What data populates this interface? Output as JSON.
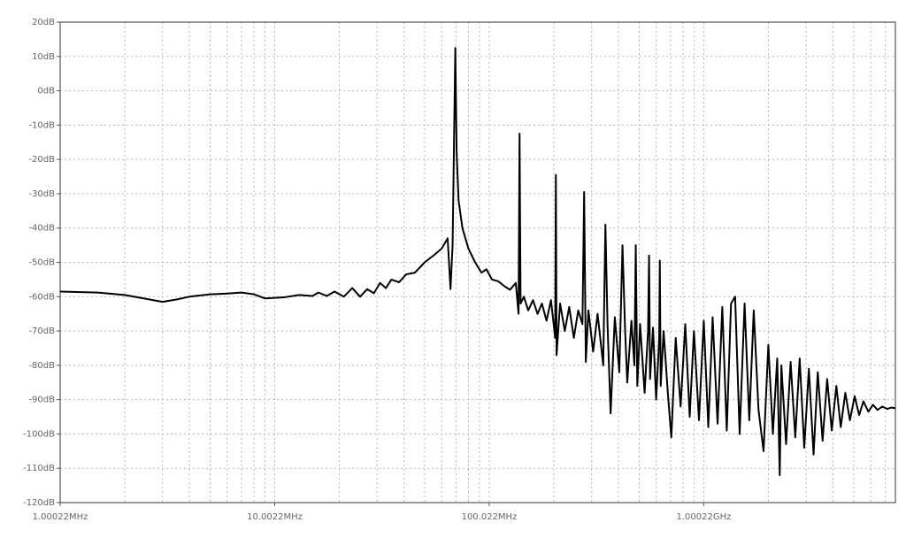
{
  "chart_data": {
    "type": "line",
    "xscale": "log",
    "grid": true,
    "color": "#000000",
    "xlim": [
      1000220,
      7820000000
    ],
    "ylim": [
      -120,
      20
    ],
    "xticks": [
      {
        "value": 1000220,
        "label": "1.00022MHz"
      },
      {
        "value": 10002200,
        "label": "10.0022MHz"
      },
      {
        "value": 100022000,
        "label": "100.022MHz"
      },
      {
        "value": 1000220000,
        "label": "1.00022GHz"
      }
    ],
    "xminor_ticks": [
      2000440,
      3000660,
      4000880,
      5001100,
      6001320,
      7001540,
      8001760,
      9001980,
      20004400,
      30006600,
      40008800,
      50011000,
      60013200,
      70015400,
      80017600,
      90019800,
      200044000,
      300066000,
      400088000,
      500110000,
      600132000,
      700154000,
      800176000,
      900198000,
      2000440000,
      3000660000,
      4000880000,
      5001100000,
      6001320000,
      7001540000
    ],
    "yticks": [
      {
        "value": 20,
        "label": "20dB"
      },
      {
        "value": 10,
        "label": "10dB"
      },
      {
        "value": 0,
        "label": "0dB"
      },
      {
        "value": -10,
        "label": "-10dB"
      },
      {
        "value": -20,
        "label": "-20dB"
      },
      {
        "value": -30,
        "label": "-30dB"
      },
      {
        "value": -40,
        "label": "-40dB"
      },
      {
        "value": -50,
        "label": "-50dB"
      },
      {
        "value": -60,
        "label": "-60dB"
      },
      {
        "value": -70,
        "label": "-70dB"
      },
      {
        "value": -80,
        "label": "-80dB"
      },
      {
        "value": -90,
        "label": "-90dB"
      },
      {
        "value": -100,
        "label": "-100dB"
      },
      {
        "value": -110,
        "label": "-110dB"
      },
      {
        "value": -120,
        "label": "-120dB"
      }
    ],
    "x": [
      1000220,
      1500000,
      2000000,
      2500000,
      3000000,
      3500000,
      4000000,
      5000000,
      6000000,
      7000000,
      8000000,
      9000000,
      11000000,
      13000000,
      15000000,
      16000000,
      17500000,
      19000000,
      21000000,
      23000000,
      25000000,
      27000000,
      29000000,
      31000000,
      33000000,
      35000000,
      38000000,
      41000000,
      45000000,
      50000000,
      55000000,
      60000000,
      64000000,
      66000000,
      67500000,
      69500000,
      70500000,
      72000000,
      75000000,
      80000000,
      86000000,
      92000000,
      97000000,
      103000000,
      110000000,
      118000000,
      125000000,
      133000000,
      137000000,
      138500000,
      140000000,
      145000000,
      152000000,
      160000000,
      168000000,
      176000000,
      185000000,
      194000000,
      203000000,
      204500000,
      206000000,
      214000000,
      225000000,
      236000000,
      248000000,
      260000000,
      272000000,
      277000000,
      282000000,
      290000000,
      305000000,
      320000000,
      340000000,
      348000000,
      356000000,
      368000000,
      385000000,
      404000000,
      418000000,
      430000000,
      440000000,
      460000000,
      475000000,
      482000000,
      490000000,
      505000000,
      530000000,
      550000000,
      556000000,
      562000000,
      580000000,
      600000000,
      620000000,
      624000000,
      630000000,
      650000000,
      680000000,
      706000000,
      740000000,
      780000000,
      820000000,
      860000000,
      900000000,
      950000000,
      1000000000,
      1050000000,
      1100000000,
      1160000000,
      1220000000,
      1280000000,
      1340000000,
      1400000000,
      1470000000,
      1550000000,
      1630000000,
      1710000000,
      1800000000,
      1900000000,
      2000000000,
      2100000000,
      2200000000,
      2260000000,
      2300000000,
      2420000000,
      2540000000,
      2670000000,
      2800000000,
      2940000000,
      3090000000,
      3250000000,
      3400000000,
      3580000000,
      3760000000,
      3950000000,
      4150000000,
      4350000000,
      4570000000,
      4800000000,
      5050000000,
      5300000000,
      5550000000,
      5850000000,
      6150000000,
      6450000000,
      6800000000,
      7150000000,
      7500000000,
      7820000000
    ],
    "values": [
      -58.5,
      -58.8,
      -59.5,
      -60.6,
      -61.5,
      -60.8,
      -60,
      -59.3,
      -59.1,
      -58.8,
      -59.3,
      -60.5,
      -60.2,
      -59.5,
      -59.8,
      -58.8,
      -59.8,
      -58.5,
      -60,
      -57.5,
      -60,
      -57.8,
      -59,
      -56,
      -57.5,
      -55,
      -55.8,
      -53.5,
      -53,
      -50,
      -48,
      -46,
      -43,
      -57.8,
      -45,
      12.5,
      -18,
      -32,
      -40,
      -46,
      -50,
      -53,
      -52,
      -55,
      -55.5,
      -57,
      -58,
      -56,
      -65,
      -12.5,
      -62,
      -60,
      -64,
      -61,
      -65,
      -62,
      -67,
      -61,
      -72,
      -24.5,
      -77,
      -62,
      -70,
      -63,
      -72,
      -64,
      -68,
      -29.5,
      -79,
      -64,
      -76,
      -65,
      -80,
      -39,
      -68,
      -94,
      -66,
      -82,
      -45,
      -70,
      -85,
      -67,
      -80,
      -45,
      -86,
      -68,
      -88,
      -70,
      -48,
      -84,
      -69,
      -90,
      -72,
      -49.5,
      -86,
      -70,
      -88,
      -101,
      -72,
      -92,
      -68,
      -95,
      -70,
      -96,
      -67,
      -98,
      -66,
      -97,
      -63,
      -99,
      -62,
      -60,
      -100,
      -62,
      -96,
      -64,
      -93,
      -105,
      -74,
      -100,
      -78,
      -112,
      -80,
      -103,
      -79,
      -101,
      -78,
      -104,
      -81,
      -106,
      -82,
      -102,
      -84,
      -99,
      -86,
      -98,
      -88,
      -96,
      -89,
      -94.5,
      -90.5,
      -93.5,
      -91.5,
      -93,
      -92,
      -92.7,
      -92.3,
      -92.5
    ]
  }
}
